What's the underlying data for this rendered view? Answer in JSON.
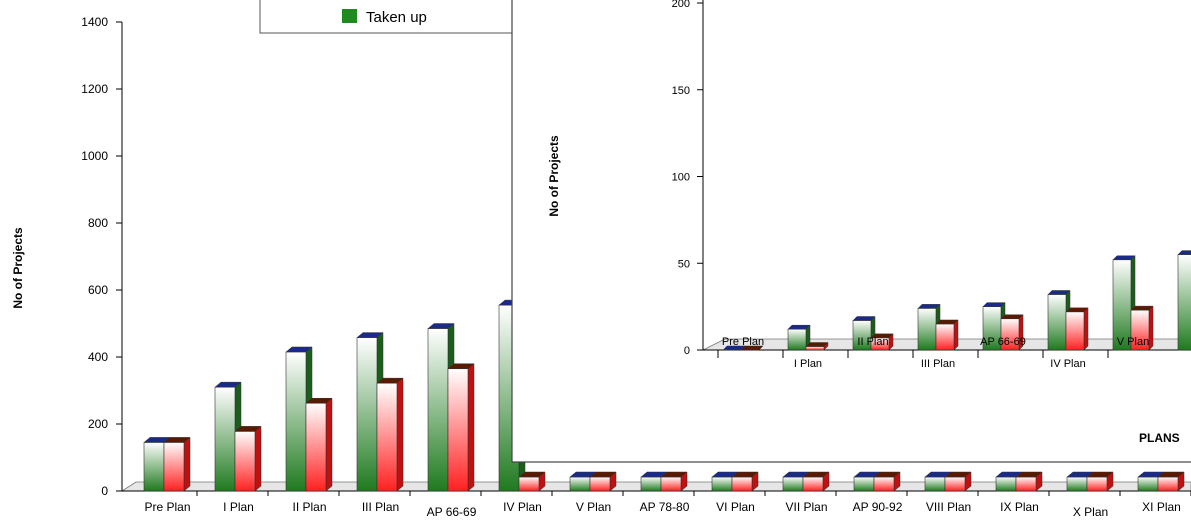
{
  "chart_data": [
    {
      "type": "bar",
      "categories": [
        "Pre Plan",
        "I Plan",
        "II Plan",
        "III Plan",
        "AP 66-69",
        "IV Plan",
        "V Plan",
        "AP 78-80",
        "VI Plan",
        "VII Plan",
        "AP 90-92",
        "VIII Plan",
        "IX Plan",
        "X Plan",
        "XI Plan"
      ],
      "series": [
        {
          "name": "",
          "values": [
            145,
            310,
            415,
            458,
            485,
            555,
            null,
            null,
            null,
            null,
            null,
            null,
            null,
            null,
            null
          ]
        },
        {
          "name": "Taken up",
          "values": [
            145,
            178,
            262,
            322,
            365,
            null,
            null,
            null,
            null,
            null,
            null,
            null,
            null,
            null,
            null
          ]
        }
      ],
      "legend": [
        "",
        "Taken up"
      ],
      "ylabel": "No of Projects",
      "xlabel": "",
      "yticks": [
        "0",
        "200",
        "400",
        "600",
        "800",
        "1000",
        "1200",
        "1400"
      ],
      "ylim": [
        0,
        1400
      ],
      "legend_placement": "top",
      "colors": {
        "series_1": "#1f7a1f",
        "series_2": "#ff2020",
        "cap_1": "#1a2a8a",
        "cap_2": "#5a1a00"
      }
    },
    {
      "type": "bar",
      "categories": [
        "Pre Plan",
        "I Plan",
        "II Plan",
        "III Plan",
        "AP 66-69",
        "IV Plan",
        "V Plan",
        ""
      ],
      "series": [
        {
          "name": "",
          "values": [
            0,
            12,
            17,
            24,
            25,
            32,
            52,
            55
          ]
        },
        {
          "name": "",
          "values": [
            0,
            2,
            7,
            15,
            18,
            22,
            23,
            null
          ]
        }
      ],
      "ylabel": "No of Projects",
      "xlabel": "PLANS",
      "yticks": [
        "0",
        "50",
        "100",
        "150",
        "200"
      ],
      "ylim": [
        0,
        200
      ]
    }
  ]
}
